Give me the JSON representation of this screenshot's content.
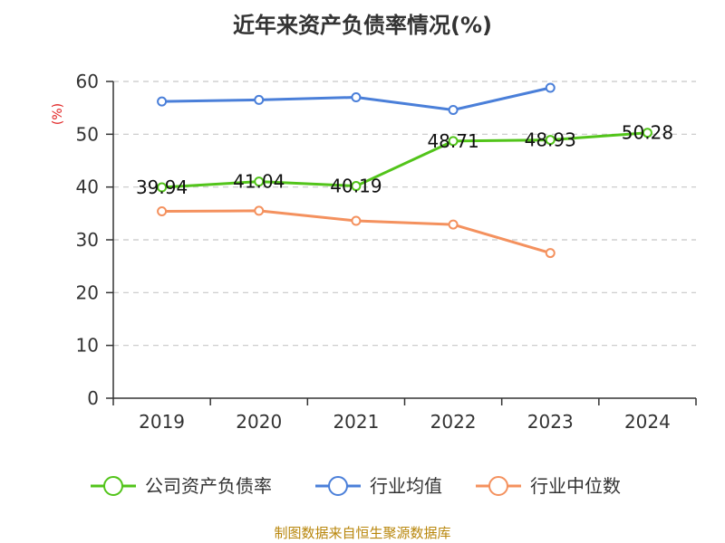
{
  "chart_data": {
    "type": "line",
    "title": "近年来资产负债率情况(%)",
    "ylabel": "(%)",
    "xlabel": "",
    "categories": [
      "2019",
      "2020",
      "2021",
      "2022",
      "2023",
      "2024"
    ],
    "ylim": [
      0,
      60
    ],
    "yticks": [
      "0",
      "10",
      "20",
      "30",
      "40",
      "50",
      "60"
    ],
    "grid": true,
    "legend_position": "bottom",
    "series": [
      {
        "name": "公司资产负债率",
        "color": "#52c41a",
        "values": [
          39.94,
          41.04,
          40.19,
          48.71,
          48.93,
          50.28
        ],
        "labels": [
          "39.94",
          "41.04",
          "40.19",
          "48.71",
          "48.93",
          "50.28"
        ]
      },
      {
        "name": "行业均值",
        "color": "#4a7fd9",
        "values": [
          56.2,
          56.5,
          57.0,
          54.6,
          58.8,
          null
        ]
      },
      {
        "name": "行业中位数",
        "color": "#f4915e",
        "values": [
          35.4,
          35.5,
          33.6,
          32.9,
          27.5,
          null
        ]
      }
    ]
  },
  "source": "制图数据来自恒生聚源数据库"
}
